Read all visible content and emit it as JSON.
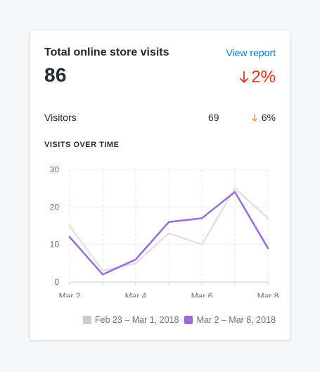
{
  "card": {
    "title": "Total online store visits",
    "view_report": "View report",
    "total_value": "86",
    "total_change": "2%",
    "change_color": "#de3618",
    "link_color": "#007ace",
    "visitors": {
      "label": "Visitors",
      "value": "69",
      "change": "6%",
      "change_arrow_color": "#f49342"
    },
    "section_title": "VISITS OVER TIME"
  },
  "chart_data": {
    "type": "line",
    "x": [
      "Mar 2",
      "Mar 3",
      "Mar 4",
      "Mar 5",
      "Mar 6",
      "Mar 7",
      "Mar 8"
    ],
    "x_tick_labels": [
      "Mar 2",
      "Mar 4",
      "Mar 6",
      "Mar 8"
    ],
    "y_ticks": [
      0,
      10,
      20,
      30
    ],
    "ylim": [
      0,
      30
    ],
    "grid": true,
    "legend_position": "bottom-right",
    "series": [
      {
        "name": "Feb 23 – Mar 1, 2018",
        "color": "#dfe3e8",
        "values": [
          15,
          3,
          5,
          13,
          10,
          25,
          17
        ]
      },
      {
        "name": "Mar 2 – Mar 8, 2018",
        "color": "#9c6ade",
        "values": [
          12,
          2,
          6,
          16,
          17,
          24,
          9
        ]
      }
    ]
  }
}
